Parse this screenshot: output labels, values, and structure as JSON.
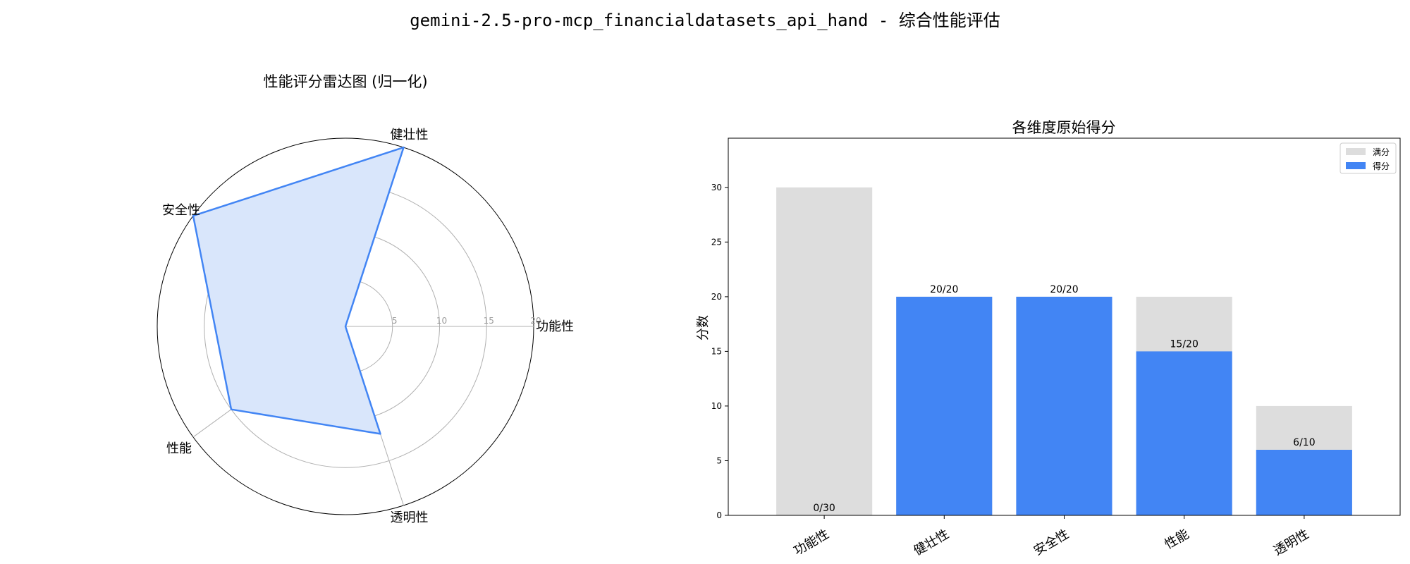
{
  "figure_title": "gemini-2.5-pro-mcp_financialdatasets_api_hand - 综合性能评估",
  "colors": {
    "score": "#4285f4",
    "full": "#dddddd",
    "radar_fill": "#d9e6fb",
    "radar_line": "#4285f4"
  },
  "chart_data": [
    {
      "type": "radar",
      "title": "性能评分雷达图 (归一化)",
      "categories": [
        "功能性",
        "健壮性",
        "安全性",
        "性能",
        "透明性"
      ],
      "values": [
        0,
        20,
        20,
        15,
        12
      ],
      "rlim": [
        0,
        20
      ],
      "r_ticks": [
        "5",
        "10",
        "15",
        "20"
      ],
      "grid": true
    },
    {
      "type": "bar",
      "title": "各维度原始得分",
      "categories": [
        "功能性",
        "健壮性",
        "安全性",
        "性能",
        "透明性"
      ],
      "series": [
        {
          "name": "满分",
          "values": [
            30,
            20,
            20,
            20,
            10
          ]
        },
        {
          "name": "得分",
          "values": [
            0,
            20,
            20,
            15,
            6
          ]
        }
      ],
      "bar_labels": [
        "0/30",
        "20/20",
        "20/20",
        "15/20",
        "6/10"
      ],
      "ylabel": "分数",
      "ylim": [
        0,
        34.5
      ],
      "yticks": [
        0,
        5,
        10,
        15,
        20,
        25,
        30
      ],
      "legend": "top-right",
      "grid": false
    }
  ]
}
